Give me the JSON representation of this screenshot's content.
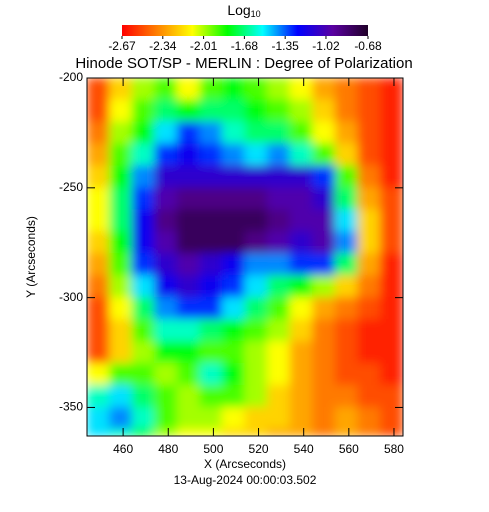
{
  "chart_data": {
    "type": "heatmap",
    "title": "Hinode SOT/SP - MERLIN : Degree of Polarization",
    "xlabel": "X (Arcseconds)",
    "ylabel": "Y (Arcseconds)",
    "footer": "13-Aug-2024 00:00:03.502",
    "colorbar_title": "Log",
    "colorbar_title_sub": "10",
    "zlim": [
      -2.67,
      -0.68
    ],
    "colorbar_ticks": [
      -2.67,
      -2.34,
      -2.01,
      -1.68,
      -1.35,
      -1.02,
      -0.68
    ],
    "colormap": [
      "#ff0000",
      "#ff8000",
      "#ffff00",
      "#00ff00",
      "#00ffff",
      "#0000ff",
      "#5a00a0",
      "#200028"
    ],
    "xlim": [
      444,
      584
    ],
    "ylim": [
      -363,
      -200
    ],
    "xticks": [
      460,
      480,
      500,
      520,
      540,
      560,
      580
    ],
    "yticks": [
      -200,
      -250,
      -300,
      -350
    ],
    "x_edges": [
      444,
      454,
      464,
      474,
      484,
      494,
      504,
      514,
      524,
      534,
      544,
      554,
      564,
      574,
      584
    ],
    "y_edges": [
      -200,
      -210,
      -220,
      -230,
      -240,
      -250,
      -260,
      -270,
      -280,
      -290,
      -300,
      -310,
      -320,
      -330,
      -340,
      -350,
      -360,
      -363
    ],
    "z": [
      [
        -2.5,
        -2.2,
        -2.0,
        -1.9,
        -2.1,
        -1.9,
        -1.8,
        -1.9,
        -2.0,
        -2.1,
        -2.3,
        -2.4,
        -2.5,
        -2.6
      ],
      [
        -2.5,
        -2.1,
        -1.9,
        -1.7,
        -1.8,
        -1.7,
        -1.7,
        -1.8,
        -1.9,
        -2.0,
        -2.2,
        -2.4,
        -2.5,
        -2.6
      ],
      [
        -2.4,
        -2.0,
        -1.8,
        -1.5,
        -1.3,
        -1.4,
        -1.6,
        -1.7,
        -1.7,
        -1.9,
        -2.1,
        -2.3,
        -2.5,
        -2.6
      ],
      [
        -2.3,
        -1.9,
        -1.6,
        -1.3,
        -1.2,
        -1.3,
        -1.4,
        -1.5,
        -1.4,
        -1.6,
        -1.9,
        -2.2,
        -2.5,
        -2.6
      ],
      [
        -2.2,
        -1.8,
        -1.4,
        -1.1,
        -1.1,
        -1.1,
        -1.1,
        -1.1,
        -1.1,
        -1.1,
        -1.3,
        -1.9,
        -2.4,
        -2.6
      ],
      [
        -2.1,
        -1.7,
        -1.3,
        -1.0,
        -0.9,
        -0.9,
        -0.9,
        -0.9,
        -1.0,
        -1.0,
        -1.1,
        -1.7,
        -2.3,
        -2.5
      ],
      [
        -2.1,
        -1.7,
        -1.2,
        -0.9,
        -0.8,
        -0.8,
        -0.8,
        -0.8,
        -0.9,
        -1.0,
        -1.0,
        -1.5,
        -2.2,
        -2.5
      ],
      [
        -2.2,
        -1.8,
        -1.2,
        -1.0,
        -0.8,
        -0.8,
        -0.8,
        -0.9,
        -1.0,
        -1.1,
        -1.0,
        -1.4,
        -2.2,
        -2.5
      ],
      [
        -2.3,
        -1.9,
        -1.3,
        -1.1,
        -1.0,
        -1.1,
        -1.2,
        -1.4,
        -1.4,
        -1.3,
        -1.3,
        -1.7,
        -2.3,
        -2.6
      ],
      [
        -2.4,
        -2.0,
        -1.5,
        -1.2,
        -1.1,
        -1.2,
        -1.3,
        -1.5,
        -1.7,
        -1.8,
        -2.0,
        -2.2,
        -2.4,
        -2.6
      ],
      [
        -2.5,
        -2.1,
        -1.7,
        -1.4,
        -1.3,
        -1.3,
        -1.5,
        -1.7,
        -1.9,
        -2.1,
        -2.3,
        -2.4,
        -2.5,
        -2.6
      ],
      [
        -2.5,
        -2.2,
        -1.9,
        -1.6,
        -1.6,
        -1.7,
        -1.8,
        -1.9,
        -2.0,
        -2.2,
        -2.4,
        -2.5,
        -2.6,
        -2.6
      ],
      [
        -2.5,
        -2.2,
        -2.0,
        -1.8,
        -1.8,
        -1.9,
        -1.9,
        -2.0,
        -2.1,
        -2.3,
        -2.4,
        -2.5,
        -2.6,
        -2.6
      ],
      [
        -2.1,
        -1.9,
        -1.9,
        -2.0,
        -1.9,
        -1.6,
        -1.8,
        -2.0,
        -2.1,
        -2.3,
        -2.4,
        -2.5,
        -2.5,
        -2.6
      ],
      [
        -1.6,
        -1.5,
        -1.7,
        -1.9,
        -2.0,
        -1.9,
        -1.9,
        -2.0,
        -2.2,
        -2.3,
        -2.4,
        -2.4,
        -2.5,
        -2.5
      ],
      [
        -1.5,
        -1.4,
        -1.6,
        -1.9,
        -2.0,
        -2.0,
        -2.1,
        -2.2,
        -2.2,
        -2.3,
        -2.4,
        -2.3,
        -2.4,
        -2.5
      ],
      [
        -1.5,
        -1.6,
        -1.8,
        -2.0,
        -2.1,
        -2.1,
        -2.2,
        -2.2,
        -2.3,
        -2.3,
        -2.4,
        -2.3,
        -2.4,
        -2.5
      ]
    ]
  }
}
